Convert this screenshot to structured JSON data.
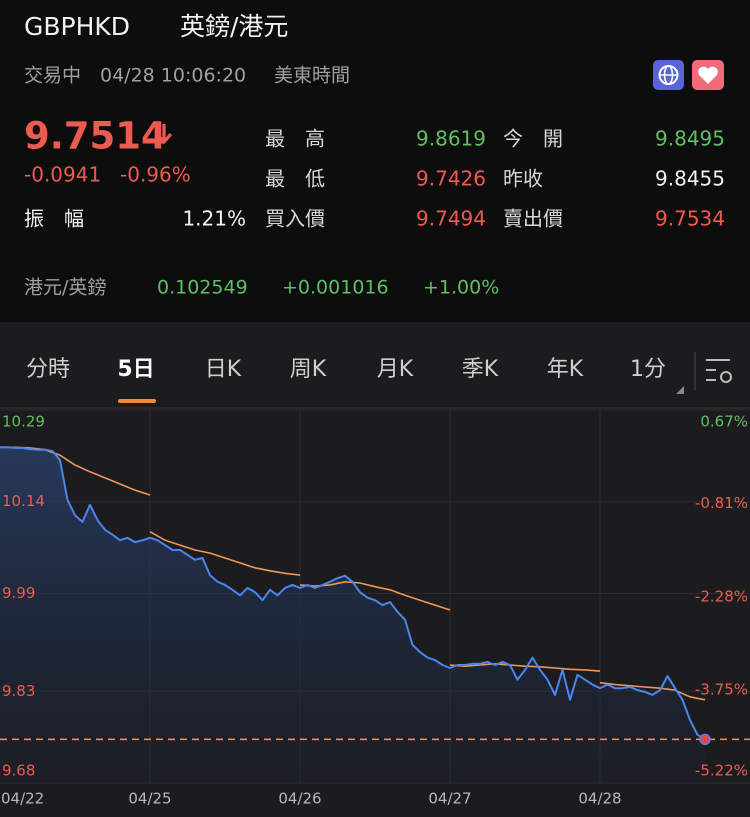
{
  "header": {
    "symbol": "GBPHKD",
    "name": "英鎊/港元",
    "status": "交易中",
    "datetime": "04/28 10:06:20",
    "timezone": "美東時間"
  },
  "quote": {
    "price": "9.7514",
    "change": "-0.0941",
    "change_pct": "-0.96%",
    "amplitude_label": "振　幅",
    "amplitude": "1.21%",
    "stats": [
      {
        "label": "最　高",
        "value": "9.8619",
        "color": "#5fbf63"
      },
      {
        "label": "今　開",
        "value": "9.8495",
        "color": "#5fbf63"
      },
      {
        "label": "最　低",
        "value": "9.7426",
        "color": "#ec5b50"
      },
      {
        "label": "昨收",
        "value": "9.8455",
        "color": "#f2f2f2"
      },
      {
        "label": "買入價",
        "value": "9.7494",
        "color": "#ec5b50"
      },
      {
        "label": "賣出價",
        "value": "9.7534",
        "color": "#ec5b50"
      }
    ]
  },
  "inverse": {
    "pair": "港元/英鎊",
    "rate": "0.102549",
    "change": "+0.001016",
    "change_pct": "+1.00%"
  },
  "tabs": [
    "分時",
    "5日",
    "日K",
    "周K",
    "月K",
    "季K",
    "年K",
    "1分"
  ],
  "chart_data": {
    "type": "line",
    "categories": [
      "04/22",
      "04/25",
      "04/26",
      "04/27",
      "04/28"
    ],
    "ylim": [
      9.68,
      10.29
    ],
    "yticks": [
      10.29,
      10.14,
      9.99,
      9.83,
      9.68
    ],
    "y2lim": [
      -5.22,
      0.67
    ],
    "y2ticks": [
      {
        "value": 0.67,
        "label": "0.67%"
      },
      {
        "value": -0.81,
        "label": "-0.81%"
      },
      {
        "value": -2.28,
        "label": "-2.28%"
      },
      {
        "value": -3.75,
        "label": "-3.75%"
      },
      {
        "value": -5.22,
        "label": "-5.22%"
      }
    ],
    "grid": true,
    "series": [
      {
        "color": "#4a86f0",
        "values": [
          [
            10.229,
            10.229,
            10.228,
            10.228,
            10.226,
            10.225,
            10.225,
            10.223,
            10.208,
            10.143,
            10.118,
            10.107,
            10.135,
            10.11,
            10.094,
            10.086,
            10.077,
            10.081,
            10.074,
            10.077
          ],
          [
            10.081,
            10.077,
            10.069,
            10.061,
            10.061,
            10.053,
            10.045,
            10.048,
            10.02,
            10.009,
            10.004,
            9.996,
            9.987,
            9.999,
            9.992,
            9.979,
            9.996,
            9.987,
            9.999,
            10.004
          ],
          [
            9.999,
            10.004,
            9.999,
            10.004,
            10.009,
            10.015,
            10.019,
            10.009,
            9.992,
            9.983,
            9.979,
            9.971,
            9.976,
            9.96,
            9.947,
            9.906,
            9.894,
            9.885,
            9.881,
            9.873
          ],
          [
            9.868,
            9.873,
            9.873,
            9.875,
            9.875,
            9.878,
            9.873,
            9.878,
            9.873,
            9.849,
            9.865,
            9.885,
            9.865,
            9.849,
            9.824,
            9.865,
            9.816,
            9.857,
            9.849,
            9.841
          ],
          [
            9.835,
            9.841,
            9.835,
            9.835,
            9.837,
            9.832,
            9.829,
            9.824,
            9.832,
            9.855,
            9.835,
            9.816,
            9.783,
            9.759,
            9.7514
          ]
        ]
      },
      {
        "color": "#f0955a",
        "values": [
          [
            10.229,
            10.229,
            10.228,
            10.225,
            10.216,
            10.2,
            10.189,
            10.179,
            10.169,
            10.159,
            10.151
          ],
          [
            10.091,
            10.077,
            10.069,
            10.061,
            10.056,
            10.048,
            10.04,
            10.032,
            10.027,
            10.023,
            10.02
          ],
          [
            10.004,
            10.002,
            10.004,
            10.009,
            10.007,
            10.001,
            9.996,
            9.987,
            9.979,
            9.971,
            9.963
          ],
          [
            9.873,
            9.871,
            9.873,
            9.875,
            9.873,
            9.871,
            9.87,
            9.868,
            9.866,
            9.865,
            9.863
          ],
          [
            9.844,
            9.841,
            9.839,
            9.837,
            9.835,
            9.832,
            9.821,
            9.816
          ]
        ]
      }
    ]
  }
}
